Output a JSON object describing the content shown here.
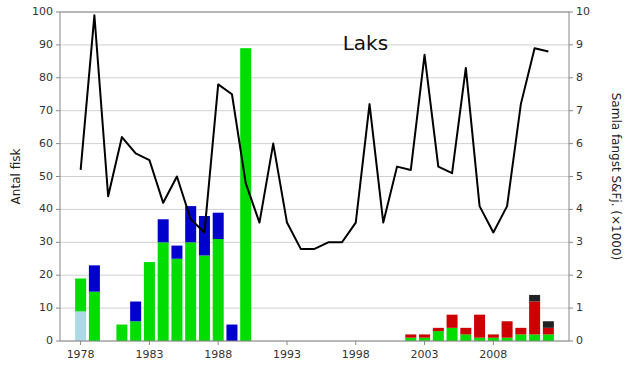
{
  "chart_data": {
    "type": "bar",
    "stacked": true,
    "title": "Laks",
    "ylabel": "Antal fisk",
    "y2label": "Samla fangst S&Fj. (×1000)",
    "x": [
      1978,
      1979,
      1980,
      1981,
      1982,
      1983,
      1984,
      1985,
      1986,
      1987,
      1988,
      1989,
      1990,
      1991,
      1992,
      1993,
      1994,
      1995,
      1996,
      1997,
      1998,
      1999,
      2000,
      2001,
      2002,
      2003,
      2004,
      2005,
      2006,
      2007,
      2008,
      2009,
      2010,
      2011,
      2012
    ],
    "xlim": [
      1976.5,
      2013.5
    ],
    "xticks": [
      1978,
      1983,
      1988,
      1993,
      1998,
      2003,
      2008
    ],
    "ylim": [
      0,
      100
    ],
    "yticks": [
      0,
      10,
      20,
      30,
      40,
      50,
      60,
      70,
      80,
      90,
      100
    ],
    "y2lim": [
      0,
      10
    ],
    "y2ticks": [
      0,
      1,
      2,
      3,
      4,
      5,
      6,
      7,
      8,
      9,
      10
    ],
    "grid": true,
    "series": [
      {
        "color": "#add8e6",
        "values": [
          9,
          0,
          0,
          0,
          0,
          0,
          0,
          0,
          0,
          0,
          0,
          0,
          0,
          0,
          0,
          0,
          0,
          0,
          0,
          0,
          0,
          0,
          0,
          0,
          0,
          0,
          0,
          0,
          0,
          0,
          0,
          0,
          0,
          0,
          0
        ]
      },
      {
        "color": "#00dd00",
        "values": [
          10,
          15,
          0,
          5,
          6,
          24,
          30,
          25,
          30,
          26,
          31,
          0,
          89,
          0,
          0,
          0,
          0,
          0,
          0,
          0,
          0,
          0,
          0,
          0,
          1,
          1,
          3,
          4,
          2,
          1,
          1,
          1,
          2,
          2,
          2
        ]
      },
      {
        "color": "#0000cc",
        "values": [
          0,
          8,
          0,
          0,
          6,
          0,
          7,
          4,
          11,
          12,
          8,
          5,
          0,
          0,
          0,
          0,
          0,
          0,
          0,
          0,
          0,
          0,
          0,
          0,
          0,
          0,
          0,
          0,
          0,
          0,
          0,
          0,
          0,
          0,
          0
        ]
      },
      {
        "color": "#cc0000",
        "values": [
          0,
          0,
          0,
          0,
          0,
          0,
          0,
          0,
          0,
          0,
          0,
          0,
          0,
          0,
          0,
          0,
          0,
          0,
          0,
          0,
          0,
          0,
          0,
          0,
          1,
          1,
          1,
          4,
          2,
          7,
          1,
          5,
          2,
          10,
          2
        ]
      },
      {
        "color": "#222222",
        "values": [
          0,
          0,
          0,
          0,
          0,
          0,
          0,
          0,
          0,
          0,
          0,
          0,
          0,
          0,
          0,
          0,
          0,
          0,
          0,
          0,
          0,
          0,
          0,
          0,
          0,
          0,
          0,
          0,
          0,
          0,
          0,
          0,
          0,
          2,
          2
        ]
      },
      {
        "type": "line",
        "axis": "y2",
        "color": "#000000",
        "values": [
          5.2,
          9.9,
          4.4,
          6.2,
          5.7,
          5.5,
          4.2,
          5.0,
          3.7,
          3.3,
          7.8,
          7.5,
          4.8,
          3.6,
          6.0,
          3.6,
          2.8,
          2.8,
          3.0,
          3.0,
          3.6,
          7.2,
          3.6,
          5.3,
          5.2,
          8.7,
          5.3,
          5.1,
          8.3,
          4.1,
          3.3,
          4.1,
          7.2,
          8.9,
          8.8
        ]
      }
    ]
  }
}
